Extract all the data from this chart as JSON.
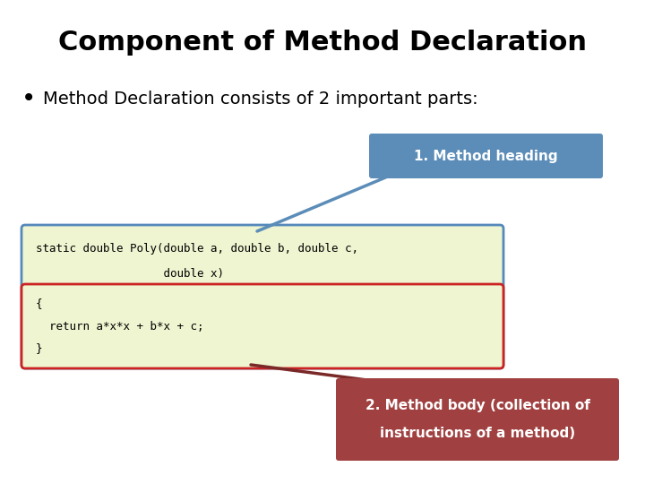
{
  "title": "Component of Method Declaration",
  "bullet_text": "Method Declaration consists of 2 important parts:",
  "code_line1": "static double Poly(double a, double b, double c,",
  "code_line2": "                   double x)",
  "code_line3": "{",
  "code_line4": "  return a*x*x + b*x + c;",
  "code_line5": "}",
  "label1": "1. Method heading",
  "label2_line1": "2. Method body (collection of",
  "label2_line2": "instructions of a method)",
  "bg_color": "#ffffff",
  "title_color": "#000000",
  "bullet_color": "#000000",
  "code_bg_color": "#eef5d0",
  "heading_box_color": "#5b8db8",
  "heading_text_color": "#ffffff",
  "body_box_color": "#a04040",
  "body_text_color": "#ffffff",
  "outer_box_border_color": "#5588bb",
  "inner_box_border_color": "#cc2222",
  "code_text_color": "#000000",
  "arrow1_color": "#5b8db8",
  "arrow2_color": "#7a2828"
}
